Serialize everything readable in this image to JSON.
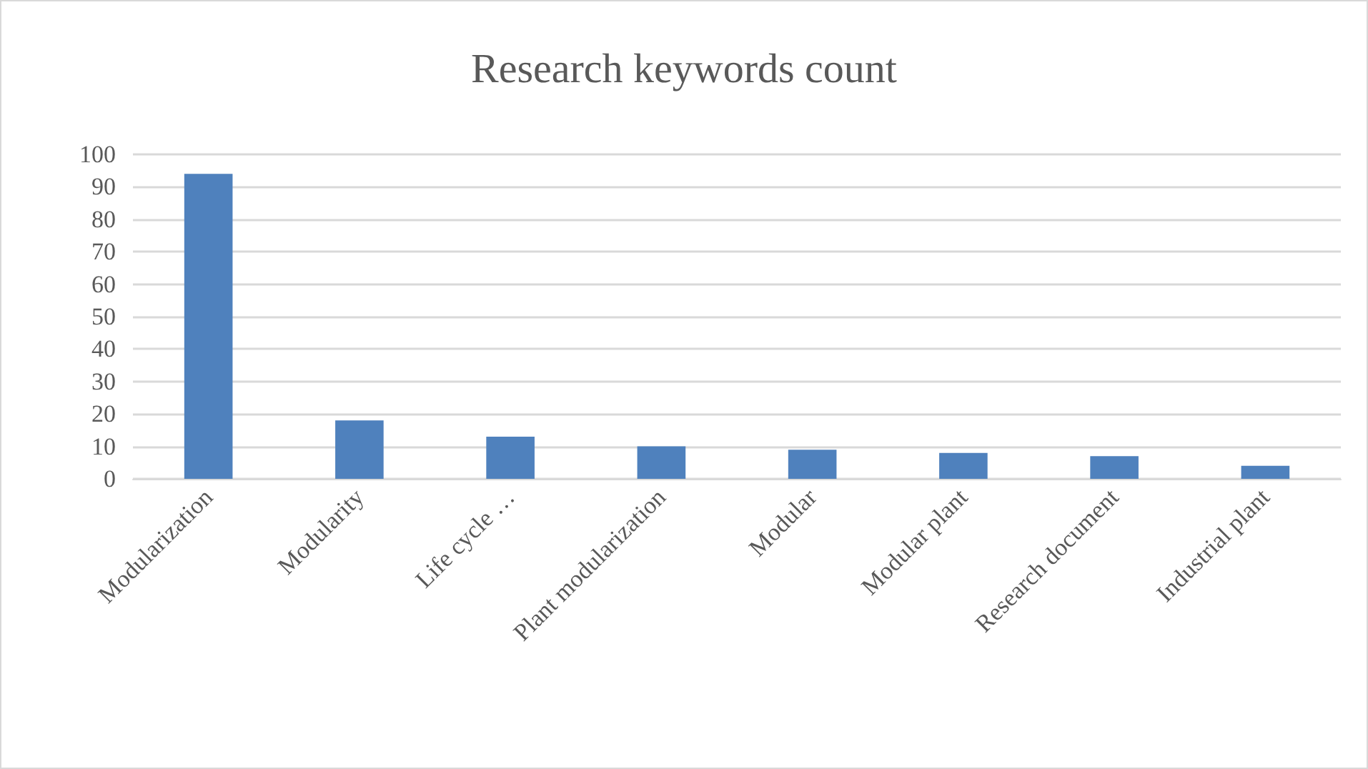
{
  "chart_data": {
    "type": "bar",
    "title": "Research keywords count",
    "categories": [
      "Modularization",
      "Modularity",
      "Life cycle …",
      "Plant modularization",
      "Modular",
      "Modular plant",
      "Research document",
      "Industrial plant"
    ],
    "values": [
      94,
      18,
      13,
      10,
      9,
      8,
      7,
      4
    ],
    "color": "#4f81bd",
    "ylim": [
      0,
      100
    ],
    "yticks": [
      0,
      10,
      20,
      30,
      40,
      50,
      60,
      70,
      80,
      90,
      100
    ],
    "grid": "y"
  }
}
